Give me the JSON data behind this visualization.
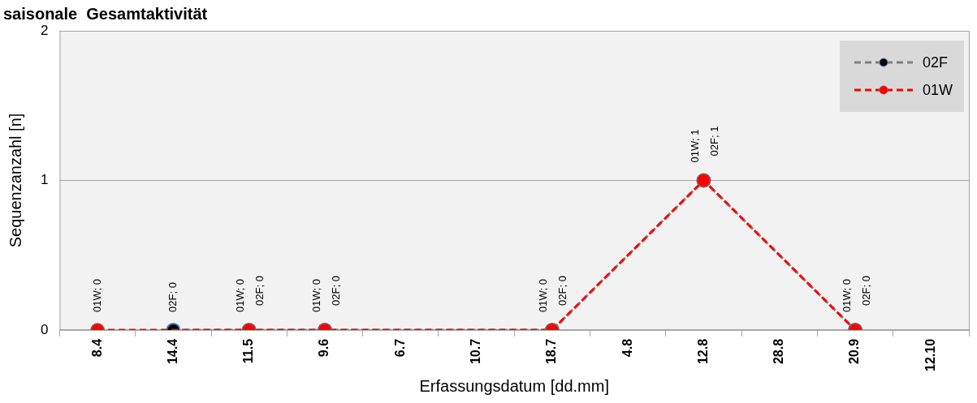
{
  "chart_data": {
    "type": "line",
    "title": "saisonale  Gesamtaktivität",
    "xlabel": "Erfassungsdatum [dd.mm]",
    "ylabel": "Sequenzanzahl [n]",
    "categories": [
      "8.4",
      "14.4",
      "11.5",
      "9.6",
      "6.7",
      "10.7",
      "18.7",
      "4.8",
      "12.8",
      "28.8",
      "20.9",
      "12.10"
    ],
    "series": [
      {
        "name": "02F",
        "color": "#808080",
        "values": [
          null,
          0,
          0,
          0,
          null,
          null,
          0,
          null,
          1,
          null,
          0,
          null
        ],
        "value_labels": [
          null,
          "02F; 0",
          "02F; 0",
          "02F; 0",
          null,
          null,
          "02F; 0",
          null,
          "02F; 1",
          null,
          "02F; 0",
          null
        ]
      },
      {
        "name": "01W",
        "color": "#ff0000",
        "values": [
          0,
          null,
          0,
          0,
          null,
          null,
          0,
          null,
          1,
          null,
          0,
          null
        ],
        "value_labels": [
          "01W; 0",
          null,
          "01W; 0",
          "01W; 0",
          null,
          null,
          "01W; 0",
          null,
          "01W; 1",
          null,
          "01W; 0",
          null
        ]
      }
    ],
    "ylim": [
      0,
      2
    ],
    "yticks": [
      0,
      1,
      2
    ],
    "grid": "y",
    "legend": "top right",
    "marker": "circle",
    "line_style": "dashed"
  }
}
